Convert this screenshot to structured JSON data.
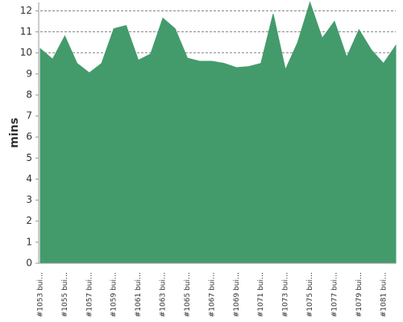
{
  "chart_data": {
    "type": "area",
    "y_label": "mins",
    "categories": [
      "#1053 bui…",
      null,
      "#1055 bui…",
      null,
      "#1057 bui…",
      null,
      "#1059 bui…",
      null,
      "#1061 bui…",
      null,
      "#1063 bui…",
      null,
      "#1065 bui…",
      null,
      "#1067 bui…",
      null,
      "#1069 bui…",
      null,
      "#1071 bui…",
      null,
      "#1073 bui…",
      null,
      "#1075 bui…",
      null,
      "#1077 bui…",
      null,
      "#1079 bui…",
      null,
      "#1081 bui…",
      null
    ],
    "values": [
      10.2,
      9.7,
      10.8,
      9.5,
      9.05,
      9.5,
      11.15,
      11.3,
      9.65,
      9.95,
      11.65,
      11.15,
      9.75,
      9.6,
      9.6,
      9.5,
      9.3,
      9.35,
      9.5,
      11.85,
      9.2,
      10.5,
      12.4,
      10.7,
      11.5,
      9.8,
      11.1,
      10.15,
      9.5,
      10.35
    ],
    "color": "#439b6b",
    "ylim": [
      0,
      12.4
    ],
    "yticks": [
      0,
      1,
      2,
      3,
      4,
      5,
      6,
      7,
      8,
      9,
      10,
      11,
      12
    ],
    "grid": true
  }
}
